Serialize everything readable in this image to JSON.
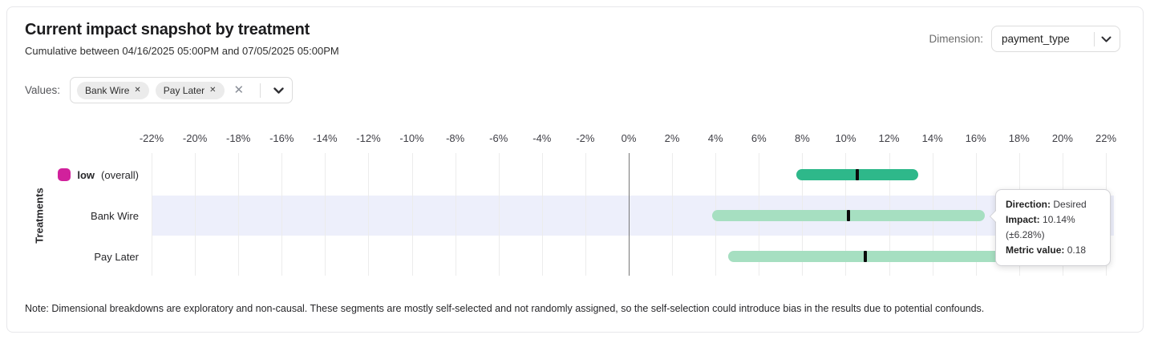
{
  "header": {
    "title": "Current impact snapshot by treatment",
    "subtitle": "Cumulative between 04/16/2025 05:00PM and 07/05/2025 05:00PM",
    "dimension_label": "Dimension:",
    "dimension_value": "payment_type"
  },
  "filters": {
    "values_label": "Values:",
    "chips": [
      {
        "label": "Bank Wire",
        "remove_icon": "✕"
      },
      {
        "label": "Pay Later",
        "remove_icon": "✕"
      }
    ],
    "clear_icon": "✕"
  },
  "chart_data": {
    "type": "interval",
    "title": "Current impact snapshot by treatment",
    "ylabel": "Treatments",
    "xlim_pct": [
      -22,
      22
    ],
    "axis_ticks_pct": [
      -22,
      -20,
      -18,
      -16,
      -14,
      -12,
      -10,
      -8,
      -6,
      -4,
      -2,
      0,
      2,
      4,
      6,
      8,
      10,
      12,
      14,
      16,
      18,
      20,
      22
    ],
    "tick_suffix": "%",
    "grid": true,
    "rows": [
      {
        "label": "low",
        "label_note": "(overall)",
        "swatch_color": "#d1219c",
        "impact_pct": 10.53,
        "moe_pct": 2.81,
        "interval_pct": [
          7.72,
          13.34
        ],
        "bar_color": "#2eb88a",
        "highlighted": false
      },
      {
        "label": "Bank Wire",
        "label_note": null,
        "swatch_color": null,
        "impact_pct": 10.14,
        "moe_pct": 6.28,
        "interval_pct": [
          3.86,
          16.42
        ],
        "bar_color": "#a6dfc1",
        "highlighted": true
      },
      {
        "label": "Pay Later",
        "label_note": null,
        "swatch_color": null,
        "impact_pct": 10.89,
        "moe_pct": 6.3,
        "interval_pct": [
          4.59,
          17.19
        ],
        "bar_color": "#a6dfc1",
        "highlighted": false
      }
    ],
    "marker_color": "#0b0b0b",
    "grid_color": "#ececec",
    "zero_line_color": "#777777",
    "highlight_band_color": "#edeffb"
  },
  "tooltip": {
    "direction_label": "Direction:",
    "direction_value": "Desired",
    "impact_label": "Impact:",
    "impact_value": "10.14% (±6.28%)",
    "metric_label": "Metric value:",
    "metric_value": "0.18"
  },
  "note": "Note: Dimensional breakdowns are exploratory and non-causal. These segments are mostly self-selected and not randomly assigned, so the self-selection could introduce bias in the results due to potential confounds."
}
